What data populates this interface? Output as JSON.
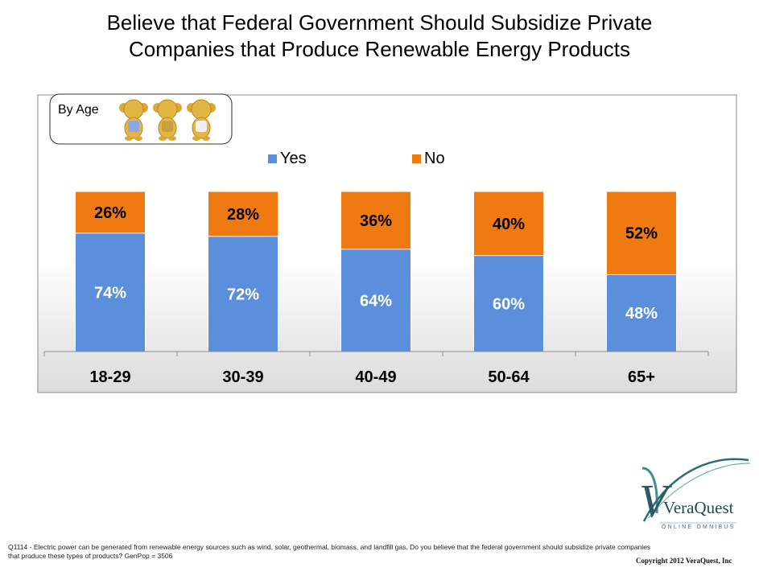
{
  "title_line1": "Believe that Federal Government Should Subsidize Private",
  "title_line2": "Companies that Produce Renewable Energy Products",
  "filter_label": "By Age",
  "chart_data": {
    "type": "bar",
    "stacked": true,
    "title": "Believe that Federal Government Should Subsidize Private Companies that Produce Renewable Energy Products",
    "categories": [
      "18-29",
      "30-39",
      "40-49",
      "50-64",
      "65+"
    ],
    "series": [
      {
        "name": "Yes",
        "values": [
          74,
          72,
          64,
          60,
          48
        ],
        "color": "#5b8fdb"
      },
      {
        "name": "No",
        "values": [
          26,
          28,
          36,
          40,
          52
        ],
        "color": "#f07a12"
      }
    ],
    "ylim": [
      0,
      100
    ],
    "value_suffix": "%",
    "legend_position": "top-center"
  },
  "footnote": "Q1114 - Electric power can be generated from renewable energy sources such as wind, solar, geothermal, biomass, and landfill gas. Do you believe that the federal government should subsidize private companies that produce these types of products? GenPop = 3506",
  "logo": {
    "name": "VeraQuest",
    "tagline": "ONLINE OMNIBUS"
  },
  "copyright": "Copyright 2012 VeraQuest, Inc"
}
